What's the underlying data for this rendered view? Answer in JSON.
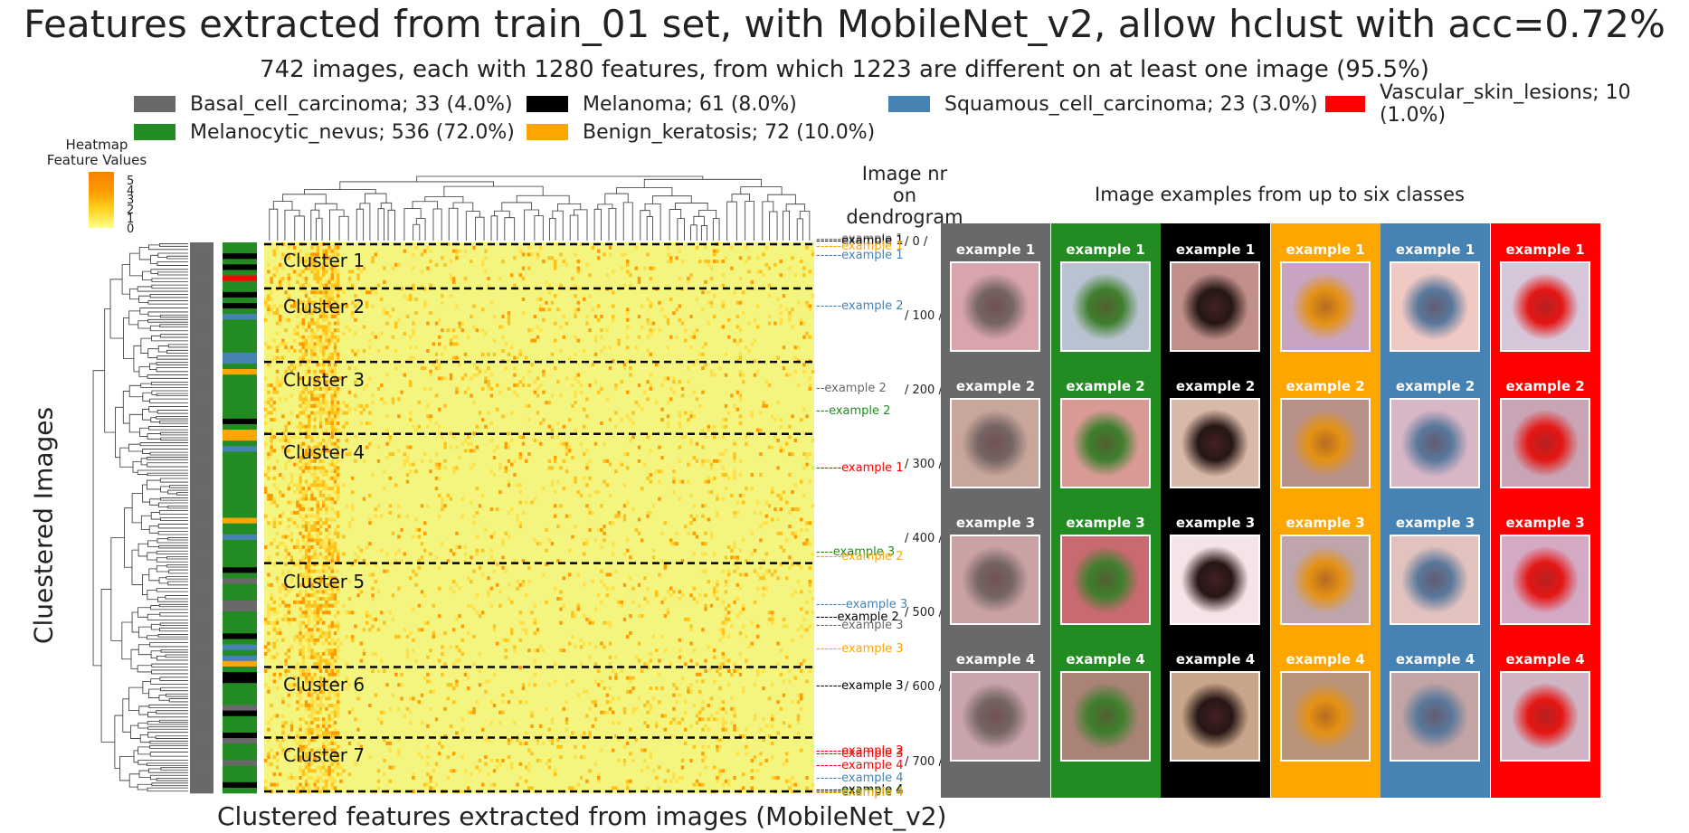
{
  "title": "Features extracted from train_01 set, with MobileNet_v2, allow hclust with acc=0.72%",
  "subtitle": "742 images, each with 1280 features, from which 1223 are different on at least one image (95.5%)",
  "legend": [
    {
      "label": "Basal_cell_carcinoma; 33 (4.0%)",
      "color": "#696969"
    },
    {
      "label": "Melanoma; 61 (8.0%)",
      "color": "#000000"
    },
    {
      "label": "Squamous_cell_carcinoma; 23 (3.0%)",
      "color": "#4682b4"
    },
    {
      "label": "Vascular_skin_lesions; 10 (1.0%)",
      "color": "#ff0000"
    },
    {
      "label": "Melanocytic_nevus; 536 (72.0%)",
      "color": "#228b22"
    },
    {
      "label": "Benign_keratosis; 72 (10.0%)",
      "color": "#ffa500"
    }
  ],
  "heatmap_legend": {
    "title": "Heatmap\nFeature Values",
    "ticks": [
      "5",
      "4",
      "3",
      "2",
      "1",
      "0"
    ],
    "colors": [
      "#ffff8c",
      "#ffd21e",
      "#ff9a00",
      "#ff8000"
    ]
  },
  "ylabel": "Cluestered Images",
  "xlabel": "Clustered features extracted from images  (MobileNet_v2)",
  "image_nr_title": "Image nr\non dendrogram",
  "examples_title": "Image examples from up to six classes",
  "chart_data": {
    "type": "heatmap",
    "rows": 742,
    "columns": 1280,
    "value_range": [
      0,
      5
    ],
    "y_ticks": [
      {
        "value": 0,
        "label": "/ 0 /"
      },
      {
        "value": 100,
        "label": "/ 100 /"
      },
      {
        "value": 200,
        "label": "/ 200 /"
      },
      {
        "value": 300,
        "label": "/ 300 /"
      },
      {
        "value": 400,
        "label": "/ 400 /"
      },
      {
        "value": 500,
        "label": "/ 500 /"
      },
      {
        "value": 600,
        "label": "/ 600 /"
      },
      {
        "value": 700,
        "label": "/ 700 /"
      }
    ],
    "clusters": [
      {
        "label": "Cluster 1",
        "start": 0,
        "end": 62
      },
      {
        "label": "Cluster 2",
        "start": 62,
        "end": 161
      },
      {
        "label": "Cluster 3",
        "start": 161,
        "end": 258
      },
      {
        "label": "Cluster 4",
        "start": 258,
        "end": 432
      },
      {
        "label": "Cluster 5",
        "start": 432,
        "end": 572
      },
      {
        "label": "Cluster 6",
        "start": 572,
        "end": 667
      },
      {
        "label": "Cluster 7",
        "start": 667,
        "end": 742
      }
    ],
    "example_markers": [
      {
        "text": "------example 1",
        "row": -4,
        "color": "#696969"
      },
      {
        "text": "------example 1",
        "row": -1,
        "color": "#000000"
      },
      {
        "text": "------example 1",
        "row": 6,
        "color": "#ffa500"
      },
      {
        "text": "------example 1",
        "row": 18,
        "color": "#4682b4"
      },
      {
        "text": "------example 2",
        "row": 86,
        "color": "#4682b4"
      },
      {
        "text": "--example 2",
        "row": 197,
        "color": "#696969"
      },
      {
        "text": "---example 2",
        "row": 228,
        "color": "#228b22"
      },
      {
        "text": "------example 1",
        "row": 305,
        "color": "#ff0000"
      },
      {
        "text": "----example 3",
        "row": 418,
        "color": "#228b22"
      },
      {
        "text": "------example 2",
        "row": 424,
        "color": "#ffa500"
      },
      {
        "text": "-------example 3",
        "row": 488,
        "color": "#4682b4"
      },
      {
        "text": "-----example 2",
        "row": 506,
        "color": "#000000"
      },
      {
        "text": "------example 3",
        "row": 516,
        "color": "#696969"
      },
      {
        "text": "------example 3",
        "row": 548,
        "color": "#ffa500"
      },
      {
        "text": "------example 3",
        "row": 598,
        "color": "#000000"
      },
      {
        "text": "------example 2",
        "row": 686,
        "color": "#ff0000"
      },
      {
        "text": "------example 3",
        "row": 690,
        "color": "#ff0000"
      },
      {
        "text": "------example 4",
        "row": 705,
        "color": "#ff0000"
      },
      {
        "text": "------example 4",
        "row": 722,
        "color": "#4682b4"
      },
      {
        "text": "------example 4",
        "row": 738,
        "color": "#000000"
      },
      {
        "text": "------example 4",
        "row": 741,
        "color": "#228b22"
      },
      {
        "text": "------example 4",
        "row": 742,
        "color": "#ffa500"
      }
    ]
  },
  "example_columns": [
    {
      "class": "Basal_cell_carcinoma",
      "color": "#696969",
      "thumb_colors": [
        "#d9a5ad",
        "#c9a69c",
        "#cba2a4",
        "#caa4ab"
      ]
    },
    {
      "class": "Melanocytic_nevus",
      "color": "#228b22",
      "thumb_colors": [
        "#b9c2d0",
        "#d99a95",
        "#c96a70",
        "#a88376"
      ]
    },
    {
      "class": "Melanoma",
      "color": "#000000",
      "thumb_colors": [
        "#c08f8a",
        "#d8b8a8",
        "#f4e4e8",
        "#c8a58a"
      ]
    },
    {
      "class": "Benign_keratosis",
      "color": "#ffa500",
      "thumb_colors": [
        "#c8a4c0",
        "#b79088",
        "#bea5ac",
        "#b89378"
      ]
    },
    {
      "class": "Squamous_cell_carcinoma",
      "color": "#4682b4",
      "thumb_colors": [
        "#f0c8c4",
        "#d7b6c6",
        "#e2c2be",
        "#c2a4a4"
      ]
    },
    {
      "class": "Vascular_skin_lesions",
      "color": "#ff0000",
      "thumb_colors": [
        "#d7c6da",
        "#c9a4b4",
        "#d4a9c4",
        "#cfb4c4"
      ]
    }
  ],
  "example_titles": [
    "example 1",
    "example 2",
    "example 3",
    "example 4"
  ]
}
